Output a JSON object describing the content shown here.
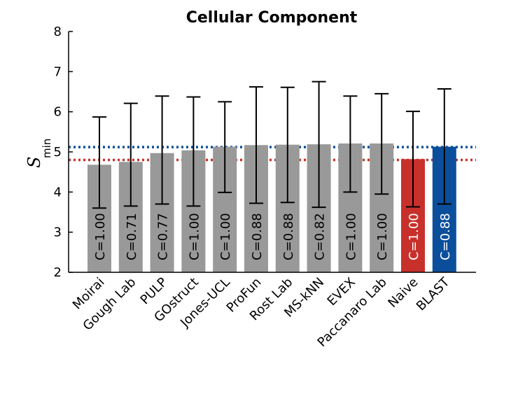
{
  "chart_data": {
    "type": "bar",
    "title": "Cellular Component",
    "ylabel": {
      "main": "S",
      "subscript": "min"
    },
    "xlabel": "",
    "ylim": [
      2,
      8
    ],
    "yticks": [
      "2",
      "3",
      "4",
      "5",
      "6",
      "7",
      "8"
    ],
    "categories": [
      "Moirai",
      "Gough Lab",
      "PULP",
      "GOstruct",
      "Jones-UCL",
      "ProFun",
      "Rost Lab",
      "MS-kNN",
      "EVEX",
      "Paccanaro Lab",
      "Naive",
      "BLAST"
    ],
    "values": [
      4.68,
      4.75,
      4.97,
      5.04,
      5.13,
      5.17,
      5.18,
      5.19,
      5.21,
      5.21,
      4.82,
      5.13
    ],
    "error_upper": [
      5.87,
      6.21,
      6.39,
      6.37,
      6.25,
      6.62,
      6.61,
      6.75,
      6.39,
      6.45,
      6.01,
      6.57
    ],
    "error_lower": [
      3.6,
      3.65,
      3.7,
      3.65,
      3.99,
      3.72,
      3.74,
      3.62,
      4.0,
      3.95,
      3.63,
      3.7
    ],
    "bar_labels": [
      "C=1.00",
      "C=0.71",
      "C=0.77",
      "C=1.00",
      "C=1.00",
      "C=0.88",
      "C=0.88",
      "C=0.82",
      "C=1.00",
      "C=1.00",
      "C=1.00",
      "C=0.88"
    ],
    "bar_colors": [
      "#999999",
      "#999999",
      "#999999",
      "#999999",
      "#999999",
      "#999999",
      "#999999",
      "#999999",
      "#999999",
      "#999999",
      "#c8302c",
      "#0b4f9c"
    ],
    "reference_lines": [
      {
        "value": 5.12,
        "color": "#0b4f9c",
        "style": "dotted"
      },
      {
        "value": 4.8,
        "color": "#c8302c",
        "style": "dotted"
      }
    ],
    "grid": false,
    "legend": "none"
  }
}
